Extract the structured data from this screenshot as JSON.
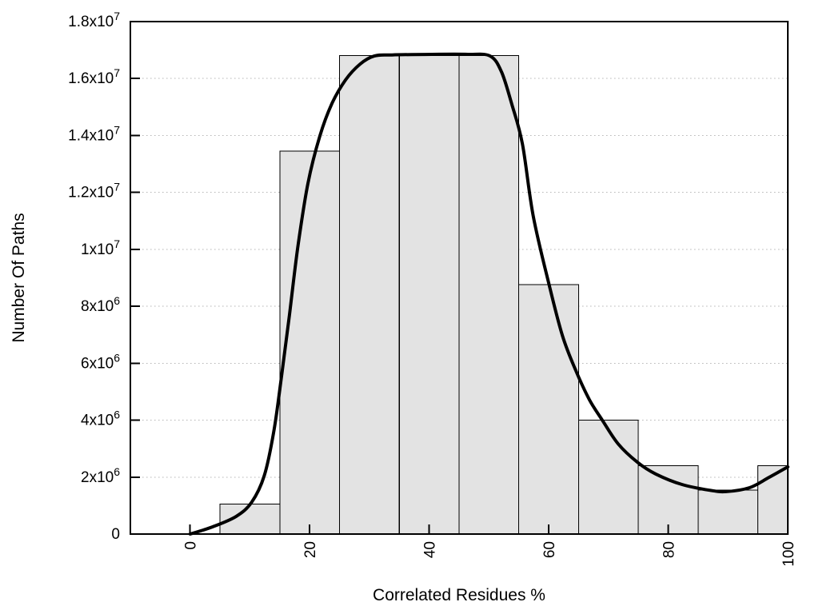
{
  "page": {
    "background": "#ffffff"
  },
  "chart_data": {
    "type": "bar",
    "title": "",
    "xlabel": "Correlated Residues %",
    "ylabel": "Number Of Paths",
    "xlim": [
      -10,
      100
    ],
    "ylim": [
      0,
      18000000
    ],
    "grid": "horizontal-dotted",
    "legend": "none",
    "bin_width": 10,
    "x_ticks": [
      {
        "value": 0,
        "label": "0"
      },
      {
        "value": 20,
        "label": "20"
      },
      {
        "value": 40,
        "label": "40"
      },
      {
        "value": 60,
        "label": "60"
      },
      {
        "value": 80,
        "label": "80"
      },
      {
        "value": 100,
        "label": "100"
      }
    ],
    "y_ticks": [
      {
        "value": 0,
        "label": "0"
      },
      {
        "value": 2000000,
        "label": "2x10^6"
      },
      {
        "value": 4000000,
        "label": "4x10^6"
      },
      {
        "value": 6000000,
        "label": "6x10^6"
      },
      {
        "value": 8000000,
        "label": "8x10^6"
      },
      {
        "value": 10000000,
        "label": "1x10^7"
      },
      {
        "value": 12000000,
        "label": "1.2x10^7"
      },
      {
        "value": 14000000,
        "label": "1.4x10^7"
      },
      {
        "value": 16000000,
        "label": "1.6x10^7"
      },
      {
        "value": 18000000,
        "label": "1.8x10^7"
      }
    ],
    "categories": [
      10,
      20,
      30,
      40,
      50,
      60,
      70,
      80,
      90,
      100
    ],
    "values": [
      1050000,
      13450000,
      16800000,
      16800000,
      16800000,
      8760000,
      4000000,
      2400000,
      1550000,
      2400000
    ],
    "series": [
      {
        "name": "paths-histogram",
        "type": "bar"
      },
      {
        "name": "smooth-trend-curve",
        "type": "line",
        "points": [
          [
            0,
            0
          ],
          [
            3.7,
            250000
          ],
          [
            7.7,
            620000
          ],
          [
            10.3,
            1120000
          ],
          [
            12.4,
            2050000
          ],
          [
            14.0,
            3600000
          ],
          [
            15.3,
            5560000
          ],
          [
            16.6,
            7670000
          ],
          [
            18.0,
            10050000
          ],
          [
            19.7,
            12300000
          ],
          [
            21.7,
            13980000
          ],
          [
            23.7,
            15110000
          ],
          [
            26.0,
            15950000
          ],
          [
            28.4,
            16500000
          ],
          [
            30.8,
            16790000
          ],
          [
            33.8,
            16830000
          ],
          [
            40.5,
            16850000
          ],
          [
            46.5,
            16850000
          ],
          [
            50.2,
            16790000
          ],
          [
            52.1,
            16230000
          ],
          [
            53.8,
            15110000
          ],
          [
            55.6,
            13700000
          ],
          [
            57.4,
            11170000
          ],
          [
            60.1,
            8730000
          ],
          [
            62.3,
            6960000
          ],
          [
            64.5,
            5760000
          ],
          [
            66.8,
            4720000
          ],
          [
            69.0,
            3990000
          ],
          [
            71.6,
            3170000
          ],
          [
            74.8,
            2530000
          ],
          [
            77.9,
            2110000
          ],
          [
            82.3,
            1740000
          ],
          [
            86.9,
            1540000
          ],
          [
            89.7,
            1490000
          ],
          [
            93.6,
            1630000
          ],
          [
            96.7,
            1970000
          ],
          [
            100,
            2360000
          ]
        ]
      }
    ],
    "colors": {
      "bar_fill": "#e3e3e3",
      "bar_border": "#000000",
      "curve": "#000000",
      "grid": "#b4b4b4",
      "axis": "#000000",
      "background": "#ffffff"
    }
  }
}
